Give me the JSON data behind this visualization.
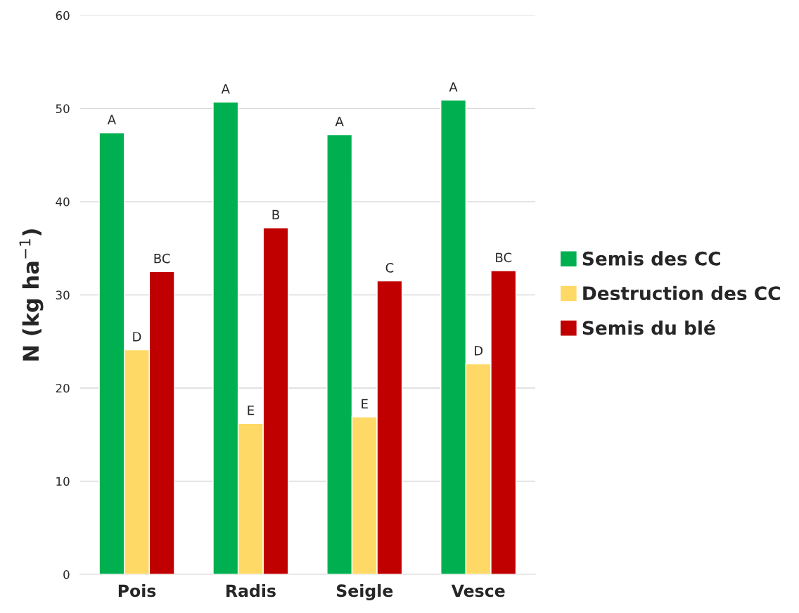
{
  "chart_data": {
    "type": "bar",
    "ylabel": "N (kg ha$^{−1}$)",
    "categories": [
      "Pois",
      "Radis",
      "Seigle",
      "Vesce"
    ],
    "series": [
      {
        "name": "Semis des CC",
        "color": "#00b050",
        "values": [
          47.4,
          50.7,
          47.2,
          50.9
        ],
        "value_labels": [
          "A",
          "A",
          "A",
          "A"
        ]
      },
      {
        "name": "Destruction des CC",
        "color": "#ffd966",
        "values": [
          24.1,
          16.2,
          16.9,
          22.6
        ],
        "value_labels": [
          "D",
          "E",
          "E",
          "D"
        ]
      },
      {
        "name": "Semis du blé",
        "color": "#c00000",
        "values": [
          32.5,
          37.2,
          31.5,
          32.6
        ],
        "value_labels": [
          "BC",
          "B",
          "C",
          "BC"
        ]
      }
    ],
    "ylim": [
      0,
      60
    ],
    "yticks": [
      0,
      10,
      20,
      30,
      40,
      50,
      60
    ],
    "grid": "y",
    "legend": "right"
  }
}
